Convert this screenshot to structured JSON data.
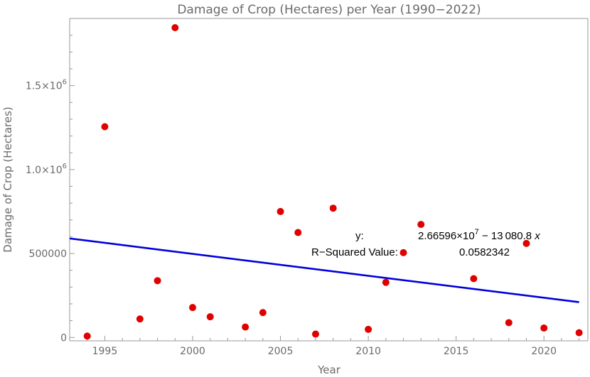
{
  "chart_data": {
    "type": "scatter",
    "title": "Damage of Crop (Hectares) per Year (1990−2022)",
    "xlabel": "Year",
    "ylabel": "Damage of Crop (Hectares)",
    "xlim": [
      1993,
      2022.5
    ],
    "ylim": [
      -20000,
      1900000
    ],
    "x_ticks": [
      1995,
      2000,
      2005,
      2010,
      2015,
      2020
    ],
    "y_ticks": [
      {
        "value": 0,
        "mantissa": "0",
        "exp": ""
      },
      {
        "value": 500000,
        "mantissa": "500000",
        "exp": ""
      },
      {
        "value": 1000000,
        "mantissa": "1.0×10",
        "exp": "6"
      },
      {
        "value": 1500000,
        "mantissa": "1.5×10",
        "exp": "6"
      }
    ],
    "grid": false,
    "series": [
      {
        "name": "Damage of Crop",
        "color": "#e00000",
        "points": [
          {
            "x": 1994,
            "y": 8000
          },
          {
            "x": 1995,
            "y": 1255000
          },
          {
            "x": 1997,
            "y": 110000
          },
          {
            "x": 1998,
            "y": 338000
          },
          {
            "x": 1999,
            "y": 1845000
          },
          {
            "x": 2000,
            "y": 178000
          },
          {
            "x": 2001,
            "y": 123000
          },
          {
            "x": 2003,
            "y": 62000
          },
          {
            "x": 2004,
            "y": 148000
          },
          {
            "x": 2005,
            "y": 750000
          },
          {
            "x": 2006,
            "y": 625000
          },
          {
            "x": 2007,
            "y": 20000
          },
          {
            "x": 2008,
            "y": 770000
          },
          {
            "x": 2010,
            "y": 48000
          },
          {
            "x": 2011,
            "y": 328000
          },
          {
            "x": 2012,
            "y": 505000
          },
          {
            "x": 2013,
            "y": 673000
          },
          {
            "x": 2016,
            "y": 350000
          },
          {
            "x": 2018,
            "y": 88000
          },
          {
            "x": 2019,
            "y": 560000
          },
          {
            "x": 2020,
            "y": 56000
          },
          {
            "x": 2022,
            "y": 28000
          }
        ]
      }
    ],
    "trendline": {
      "color": "#0000dd",
      "intercept": 26659600,
      "slope": -13080.8,
      "x_range": [
        1993,
        2022
      ]
    },
    "annotation": {
      "eq_label": "y:",
      "eq_mantissa": "2.66596×10",
      "eq_exp": "7",
      "eq_rest": " − 13 080.8 ",
      "eq_var": "x",
      "r2_label": "R−Squared Value:",
      "r2_value": "0.0582342"
    }
  }
}
